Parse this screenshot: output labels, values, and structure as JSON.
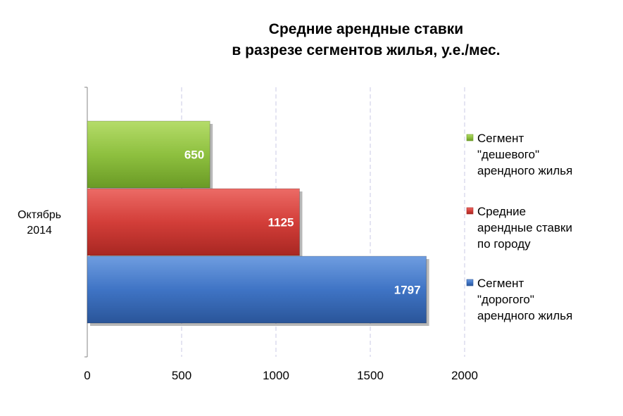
{
  "chart_data": {
    "type": "bar",
    "orientation": "horizontal",
    "title": [
      "Средние арендные ставки",
      "в разрезе сегментов жилья, у.е./мес."
    ],
    "categories": [
      "Октябрь 2014"
    ],
    "category_lines": [
      "Октябрь",
      "2014"
    ],
    "xlim": [
      0,
      2000
    ],
    "xticks": [
      0,
      500,
      1000,
      1500,
      2000
    ],
    "grid": "vertical dashed",
    "legend_position": "right",
    "series": [
      {
        "name": "Сегмент \"дешевого\" арендного жилья",
        "legend_lines": [
          "Сегмент",
          "\"дешевого\"",
          "арендного жилья"
        ],
        "values": [
          650
        ],
        "color": "#8db83c"
      },
      {
        "name": "Средние арендные ставки по городу",
        "legend_lines": [
          "Средние",
          "арендные ставки",
          "по городу"
        ],
        "values": [
          1125
        ],
        "color": "#d23f3a"
      },
      {
        "name": "Сегмент \"дорогого\" арендного жилья",
        "legend_lines": [
          "Сегмент",
          "\"дорогого\"",
          "арендного жилья"
        ],
        "values": [
          1797
        ],
        "color": "#3e74c4"
      }
    ]
  }
}
